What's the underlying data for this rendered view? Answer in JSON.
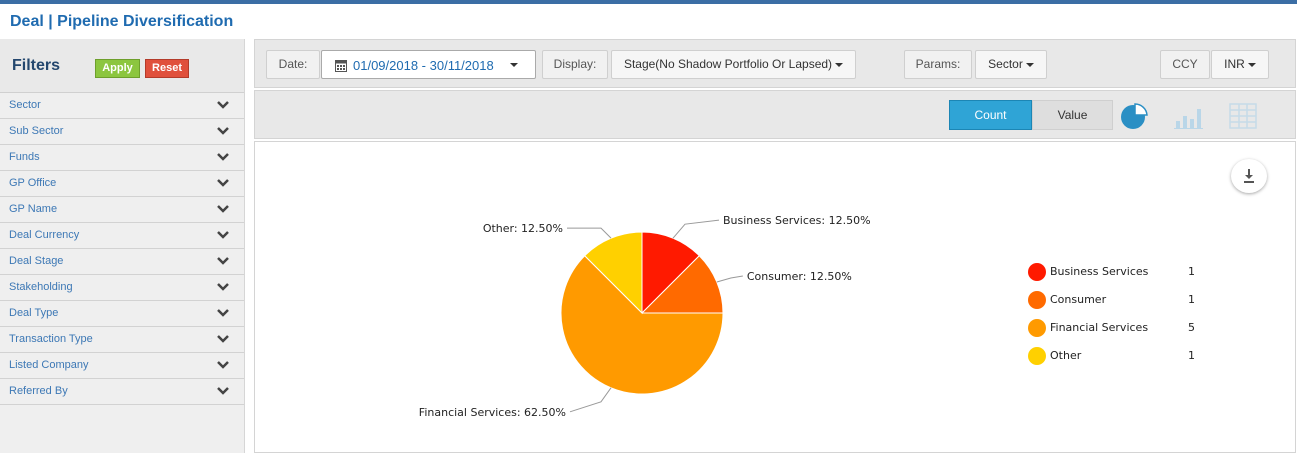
{
  "header": {
    "title": "Deal | Pipeline Diversification"
  },
  "filters": {
    "title": "Filters",
    "apply_label": "Apply",
    "reset_label": "Reset",
    "items": [
      {
        "label": "Sector"
      },
      {
        "label": "Sub Sector"
      },
      {
        "label": "Funds"
      },
      {
        "label": "GP Office"
      },
      {
        "label": "GP Name"
      },
      {
        "label": "Deal Currency"
      },
      {
        "label": "Deal Stage"
      },
      {
        "label": "Stakeholding"
      },
      {
        "label": "Deal Type"
      },
      {
        "label": "Transaction Type"
      },
      {
        "label": "Listed Company"
      },
      {
        "label": "Referred By"
      }
    ]
  },
  "toolbar": {
    "date_label": "Date:",
    "date_value": "01/09/2018 - 30/11/2018",
    "display_label": "Display:",
    "display_value": "Stage(No Shadow Portfolio Or Lapsed)",
    "params_label": "Params:",
    "params_value": "Sector",
    "ccy_label": "CCY",
    "ccy_value": "INR"
  },
  "view": {
    "count_label": "Count",
    "value_label": "Value",
    "active": "Count",
    "icons": [
      "pie-chart-icon",
      "bar-chart-icon",
      "table-grid-icon"
    ]
  },
  "colors": {
    "accent": "#2fa4d6",
    "title": "#1f6bb0",
    "apply": "#8cc63f",
    "reset": "#e0503c"
  },
  "chart_data": {
    "type": "pie",
    "title": "",
    "slices": [
      {
        "label": "Business Services",
        "value": 1,
        "percent_label": "12.50%",
        "color": "#ff1a00"
      },
      {
        "label": "Consumer",
        "value": 1,
        "percent_label": "12.50%",
        "color": "#ff6a00"
      },
      {
        "label": "Financial Services",
        "value": 5,
        "percent_label": "62.50%",
        "color": "#ff9a00"
      },
      {
        "label": "Other",
        "value": 1,
        "percent_label": "12.50%",
        "color": "#ffd000"
      }
    ],
    "legend_position": "right"
  }
}
